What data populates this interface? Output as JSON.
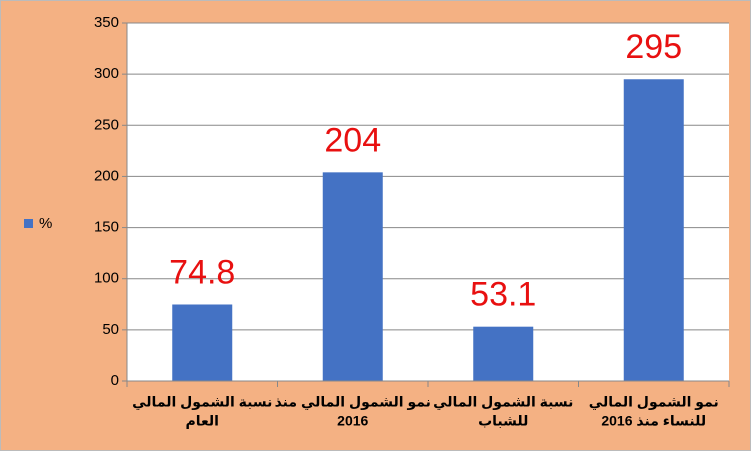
{
  "chart_data": {
    "type": "bar",
    "categories": [
      [
        "نسبة الشمول المالي",
        "العام"
      ],
      [
        "نمو الشمول المالي منذ",
        "2016"
      ],
      [
        "نسبة الشمول المالي",
        "للشباب"
      ],
      [
        "نمو الشمول المالي",
        "للنساء منذ 2016"
      ]
    ],
    "series": [
      {
        "name": "%",
        "color": "#4472c4",
        "values": [
          74.8,
          204,
          53.1,
          295
        ]
      }
    ],
    "value_label_color": "#e81010",
    "ylim": [
      0,
      350
    ],
    "yticks": [
      0,
      50,
      100,
      150,
      200,
      250,
      300,
      350
    ],
    "grid": true,
    "legend": "left"
  }
}
